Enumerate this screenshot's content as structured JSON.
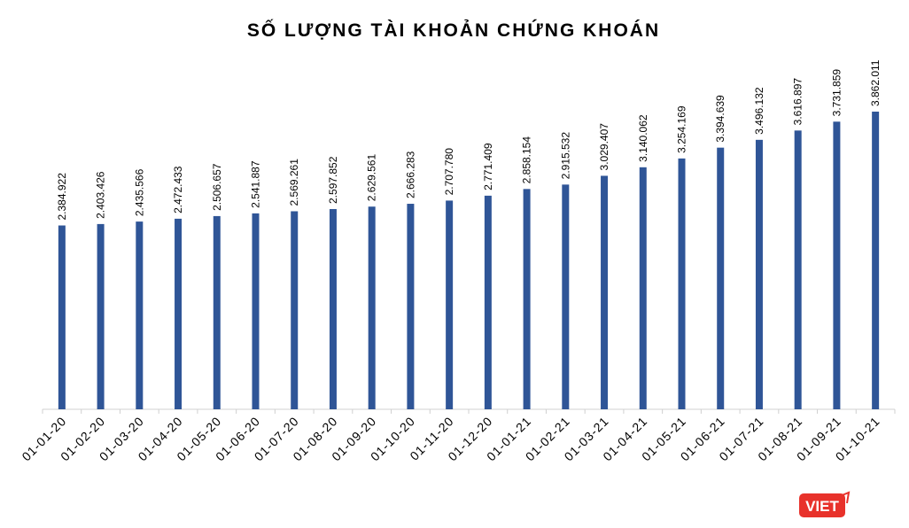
{
  "chart_data": {
    "type": "bar",
    "title": "SỐ LƯỢNG TÀI KHOẢN CHỨNG KHOÁN",
    "categories": [
      "01-01-20",
      "01-02-20",
      "01-03-20",
      "01-04-20",
      "01-05-20",
      "01-06-20",
      "01-07-20",
      "01-08-20",
      "01-09-20",
      "01-10-20",
      "01-11-20",
      "01-12-20",
      "01-01-21",
      "01-02-21",
      "01-03-21",
      "01-04-21",
      "01-05-21",
      "01-06-21",
      "01-07-21",
      "01-08-21",
      "01-09-21",
      "01-10-21"
    ],
    "values": [
      2384922,
      2403426,
      2435566,
      2472433,
      2506657,
      2541887,
      2569261,
      2597852,
      2629561,
      2666283,
      2707780,
      2771409,
      2858154,
      2915532,
      3029407,
      3140062,
      3254169,
      3394639,
      3496132,
      3616897,
      3731859,
      3862011
    ],
    "value_labels": [
      "2.384.922",
      "2.403.426",
      "2.435.566",
      "2.472.433",
      "2.506.657",
      "2.541.887",
      "2.569.261",
      "2.597.852",
      "2.629.561",
      "2.666.283",
      "2.707.780",
      "2.771.409",
      "2.858.154",
      "2.915.532",
      "3.029.407",
      "3.140.062",
      "3.254.169",
      "3.394.639",
      "3.496.132",
      "3.616.897",
      "3.731.859",
      "3.862.011"
    ],
    "color": "#2f5597",
    "ylim": [
      0,
      4000000
    ],
    "watermark": "VIET"
  }
}
